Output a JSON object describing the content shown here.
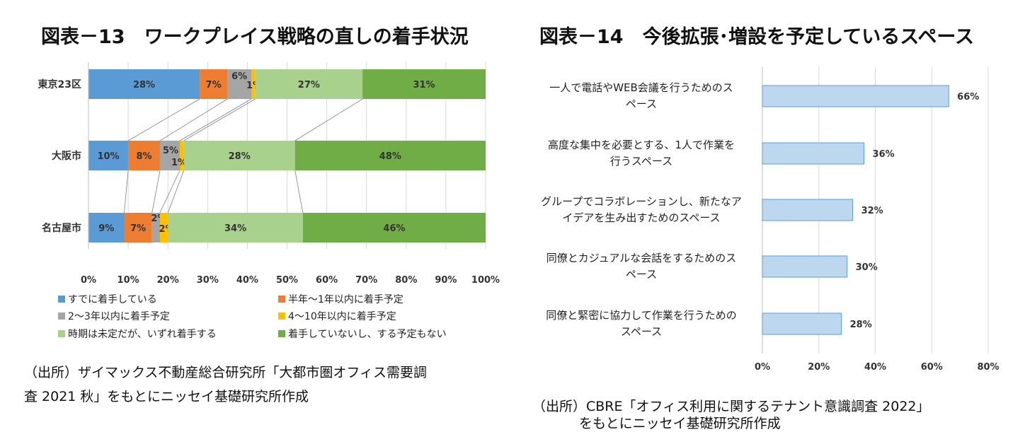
{
  "chart13": {
    "title": "図表－13　ワークプレイス戦略の直しの着手状況",
    "source_line1": "（出所）ザイマックス不動産総合研究所「大都市圏オフィス需要調",
    "source_line2": "査 2021 秋」をもとにニッセイ基礎研究所作成"
  },
  "chart14": {
    "title": "図表－14　今後拡張･増設を予定しているスペース",
    "source_line1": "（出所）CBRE「オフィス利用に関するテナント意識調査 2022」",
    "source_line2": "をもとにニッセイ基礎研究所作成"
  },
  "chart_data": [
    {
      "type": "bar",
      "orientation": "horizontal-stacked-100",
      "title": "図表－13　ワークプレイス戦略の直しの着手状況",
      "categories": [
        "東京23区",
        "大阪市",
        "名古屋市"
      ],
      "series": [
        {
          "name": "すでに着手している",
          "color": "#5B9BD5",
          "values": [
            28,
            10,
            9
          ]
        },
        {
          "name": "半年～1年以内に着手予定",
          "color": "#ED7D31",
          "values": [
            7,
            8,
            7
          ]
        },
        {
          "name": "2～3年以内に着手予定",
          "color": "#A5A5A5",
          "values": [
            6,
            5,
            2
          ]
        },
        {
          "name": "4～10年以内に着手予定",
          "color": "#FFC000",
          "values": [
            1,
            1,
            2
          ]
        },
        {
          "name": "時期は未定だが、いずれ着手する",
          "color": "#A9D18E",
          "values": [
            27,
            28,
            34
          ]
        },
        {
          "name": "着手していないし、する予定もない",
          "color": "#70AD47",
          "values": [
            31,
            48,
            46
          ]
        }
      ],
      "xlim": [
        0,
        100
      ],
      "xticks": [
        "0%",
        "10%",
        "20%",
        "30%",
        "40%",
        "50%",
        "60%",
        "70%",
        "80%",
        "90%",
        "100%"
      ],
      "grid": true,
      "legend": "bottom"
    },
    {
      "type": "bar",
      "orientation": "horizontal",
      "title": "図表－14　今後拡張･増設を予定しているスペース",
      "categories": [
        [
          "一人で電話やWEB会議を行うためのス",
          "ペース"
        ],
        [
          "高度な集中を必要とする、1人で作業を",
          "行うスペース"
        ],
        [
          "グループでコラボレーションし、新たなア",
          "イデアを生み出すためのスペース"
        ],
        [
          "同僚とカジュアルな会話をするためのス",
          "ペース"
        ],
        [
          "同僚と緊密に協力して作業を行うための",
          "スペース"
        ]
      ],
      "values": [
        66,
        36,
        32,
        30,
        28
      ],
      "labels": [
        "66%",
        "36%",
        "32%",
        "30%",
        "28%"
      ],
      "color": "#BDD7EE",
      "xlim": [
        0,
        80
      ],
      "xticks": [
        "0%",
        "20%",
        "40%",
        "60%",
        "80%"
      ],
      "grid": true
    }
  ]
}
